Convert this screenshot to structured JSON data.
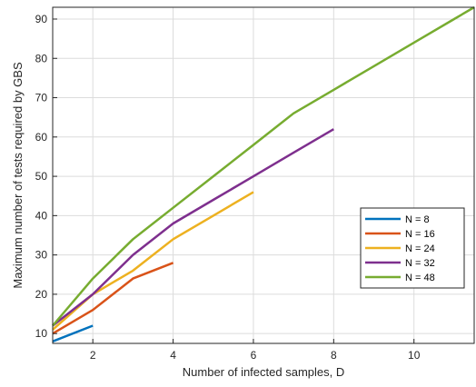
{
  "chart_data": {
    "type": "line",
    "xlabel": "Number of infected samples, D",
    "ylabel": "Maximum number of tests required by GBS",
    "xlim": [
      1,
      11.5
    ],
    "ylim": [
      7.5,
      93
    ],
    "xticks": [
      2,
      4,
      6,
      8,
      10
    ],
    "yticks": [
      10,
      20,
      30,
      40,
      50,
      60,
      70,
      80,
      90
    ],
    "grid": true,
    "legend_position": "right",
    "series": [
      {
        "name": "N = 8",
        "color": "#0072BD",
        "x": [
          1,
          2
        ],
        "y": [
          8,
          12
        ]
      },
      {
        "name": "N = 16",
        "color": "#D95319",
        "x": [
          1,
          2,
          3,
          4
        ],
        "y": [
          10,
          16,
          24,
          28
        ]
      },
      {
        "name": "N = 24",
        "color": "#EDB120",
        "x": [
          1,
          2,
          3,
          4,
          5,
          6
        ],
        "y": [
          11,
          20,
          26,
          34,
          40,
          46
        ]
      },
      {
        "name": "N = 32",
        "color": "#7E2F8E",
        "x": [
          1,
          2,
          3,
          4,
          5,
          6,
          7,
          8
        ],
        "y": [
          12,
          20,
          30,
          38,
          44,
          50,
          56,
          62
        ]
      },
      {
        "name": "N = 48",
        "color": "#77AC30",
        "x": [
          1,
          2,
          3,
          4,
          5,
          6,
          7,
          8,
          9,
          10,
          11,
          11.5
        ],
        "y": [
          12,
          24,
          34,
          42,
          50,
          58,
          66,
          72,
          78,
          84,
          90,
          93
        ]
      }
    ]
  }
}
